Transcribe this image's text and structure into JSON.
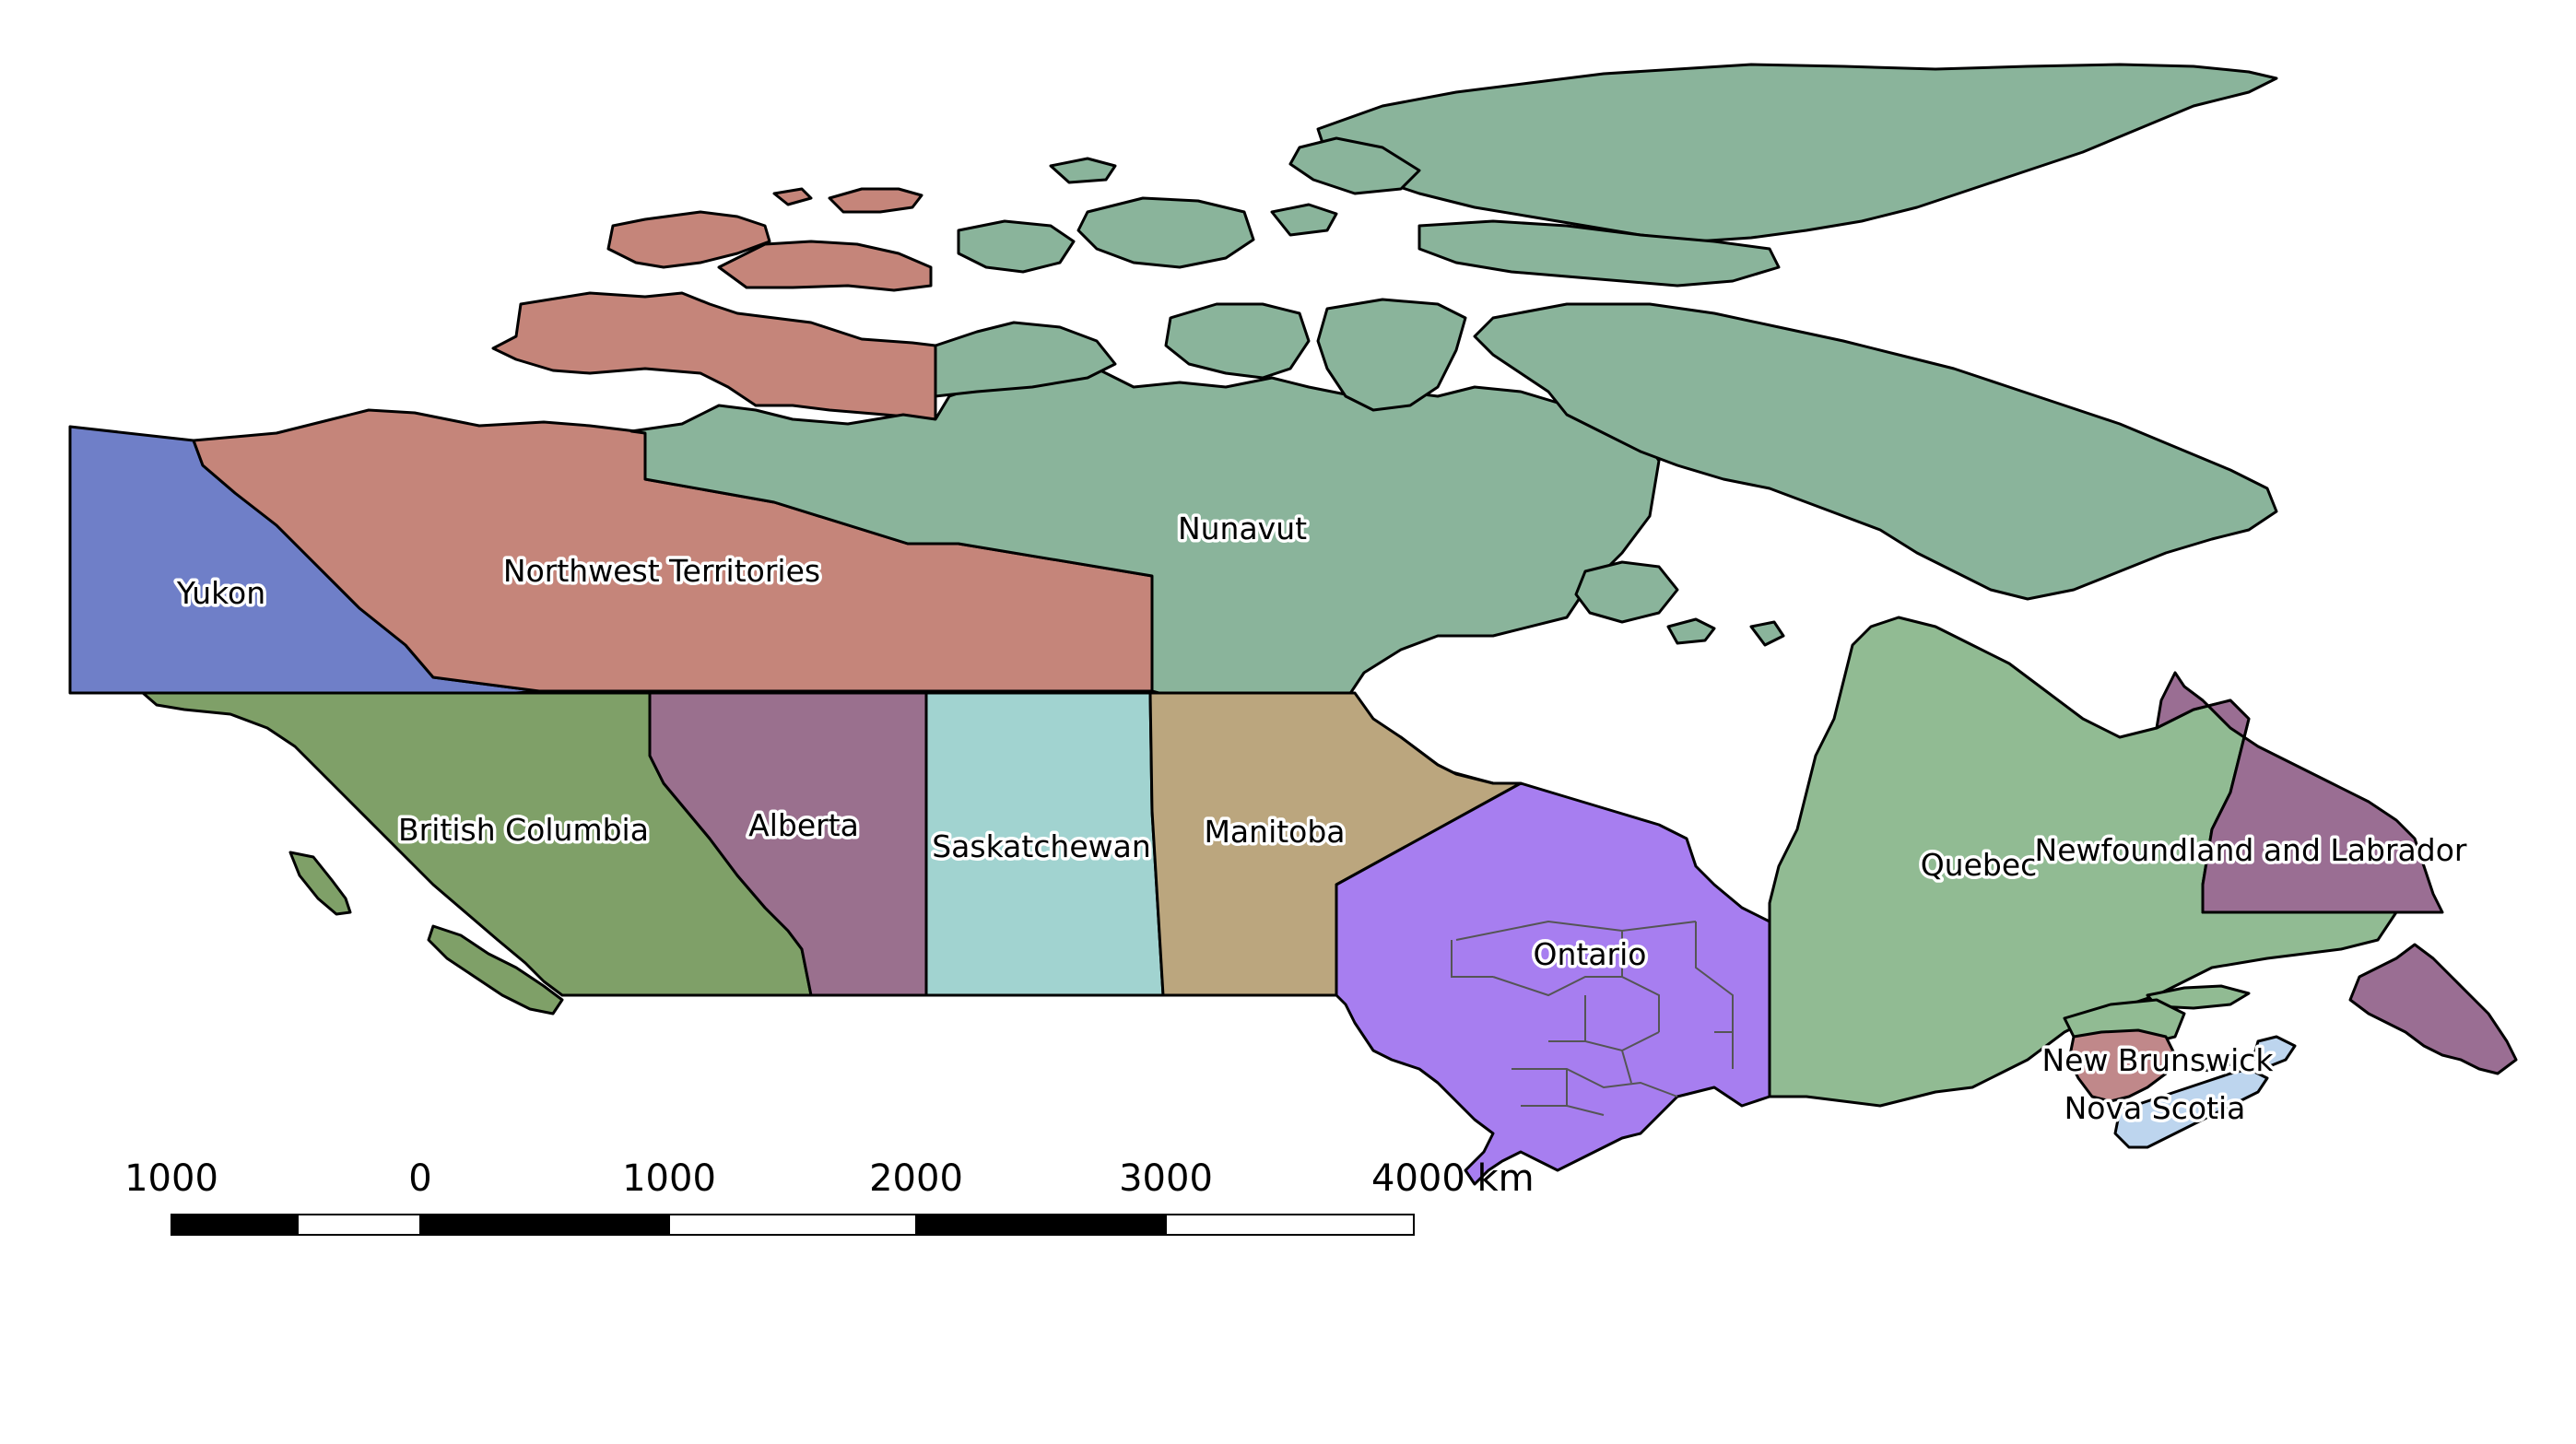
{
  "provinces": [
    {
      "id": "yukon",
      "name": "Yukon",
      "color": "#6f7fc8"
    },
    {
      "id": "nwt",
      "name": "Northwest Territories",
      "color": "#c5857a"
    },
    {
      "id": "nunavut",
      "name": "Nunavut",
      "color": "#8ab49b"
    },
    {
      "id": "bc",
      "name": "British Columbia",
      "color": "#7fa068"
    },
    {
      "id": "alberta",
      "name": "Alberta",
      "color": "#9a708e"
    },
    {
      "id": "saskatchewan",
      "name": "Saskatchewan",
      "color": "#a1d3d0"
    },
    {
      "id": "manitoba",
      "name": "Manitoba",
      "color": "#bba67e"
    },
    {
      "id": "ontario",
      "name": "Ontario",
      "color": "#a77ef0"
    },
    {
      "id": "quebec",
      "name": "Quebec",
      "color": "#91bb93"
    },
    {
      "id": "nl",
      "name": "Newfoundland and Labrador",
      "color": "#9a6e93"
    },
    {
      "id": "nb",
      "name": "New Brunswick",
      "color": "#c0888a"
    },
    {
      "id": "ns",
      "name": "Nova Scotia",
      "color": "#bdd5ee"
    }
  ],
  "scalebar": {
    "labels": [
      "1000",
      "0",
      "1000",
      "2000",
      "3000",
      "4000 km"
    ]
  }
}
